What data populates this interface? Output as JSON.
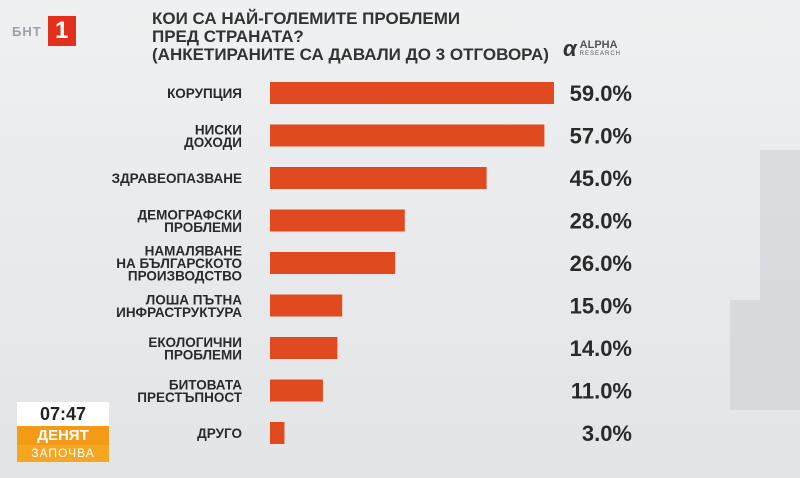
{
  "channel": {
    "logo_text": "БНТ",
    "logo_number": "1"
  },
  "header": {
    "title_line1": "КОИ СА НАЙ-ГОЛЕМИТЕ ПРОБЛЕМИ",
    "title_line2": "ПРЕД СТРАНАТА?",
    "subtitle": "(АНКЕТИРАНИТЕ СА ДАВАЛИ ДО 3 ОТГОВОРА)"
  },
  "source_logo": {
    "mark": "α",
    "name": "ALPHA",
    "sub": "RESEARCH"
  },
  "chart_data": {
    "type": "bar",
    "orientation": "horizontal",
    "title": "КОИ СА НАЙ-ГОЛЕМИТЕ ПРОБЛЕМИ ПРЕД СТРАНАТА?",
    "subtitle": "(АНКЕТИРАНИТЕ СА ДАВАЛИ ДО 3 ОТГОВОРА)",
    "bar_color": "#e04a1e",
    "categories": [
      [
        "КОРУПЦИЯ"
      ],
      [
        "НИСКИ",
        "ДОХОДИ"
      ],
      [
        "ЗДРАВЕОПАЗВАНЕ"
      ],
      [
        "ДЕМОГРАФСКИ",
        "ПРОБЛЕМИ"
      ],
      [
        "НАМАЛЯВАНЕ",
        "НА БЪЛГАРСКОТО",
        "ПРОИЗВОДСТВО"
      ],
      [
        "ЛОША ПЪТНА",
        "ИНФРАСТРУКТУРА"
      ],
      [
        "ЕКОЛОГИЧНИ",
        "ПРОБЛЕМИ"
      ],
      [
        "БИТОВАТА",
        "ПРЕСТЪПНОСТ"
      ],
      [
        "ДРУГО"
      ]
    ],
    "values": [
      59.0,
      57.0,
      45.0,
      28.0,
      26.0,
      15.0,
      14.0,
      11.0,
      3.0
    ],
    "value_labels": [
      "59.0%",
      "57.0%",
      "45.0%",
      "28.0%",
      "26.0%",
      "15.0%",
      "14.0%",
      "11.0%",
      "3.0%"
    ],
    "xlim": [
      0,
      59.0
    ]
  },
  "clock": {
    "time": "07:47",
    "program_line1": "ДЕНЯТ",
    "program_line2": "ЗАПОЧВА"
  }
}
